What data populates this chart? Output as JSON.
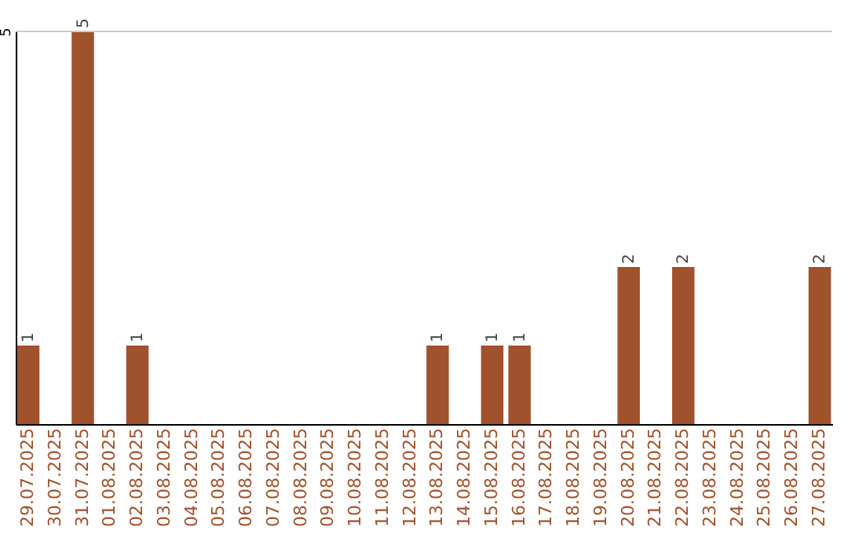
{
  "chart_data": {
    "type": "bar",
    "categories": [
      "29.07.2025",
      "30.07.2025",
      "31.07.2025",
      "01.08.2025",
      "02.08.2025",
      "03.08.2025",
      "04.08.2025",
      "05.08.2025",
      "06.08.2025",
      "07.08.2025",
      "08.08.2025",
      "09.08.2025",
      "10.08.2025",
      "11.08.2025",
      "12.08.2025",
      "13.08.2025",
      "14.08.2025",
      "15.08.2025",
      "16.08.2025",
      "17.08.2025",
      "18.08.2025",
      "19.08.2025",
      "20.08.2025",
      "21.08.2025",
      "22.08.2025",
      "23.08.2025",
      "24.08.2025",
      "25.08.2025",
      "26.08.2025",
      "27.08.2025"
    ],
    "values": [
      1,
      0,
      5,
      0,
      1,
      0,
      0,
      0,
      0,
      0,
      0,
      0,
      0,
      0,
      0,
      1,
      0,
      1,
      1,
      0,
      0,
      0,
      2,
      0,
      2,
      0,
      0,
      0,
      0,
      2
    ],
    "value_labels": [
      "1",
      null,
      "5",
      null,
      "1",
      null,
      null,
      null,
      null,
      null,
      null,
      null,
      null,
      null,
      null,
      "1",
      null,
      "1",
      "1",
      null,
      null,
      null,
      "2",
      null,
      "2",
      null,
      null,
      null,
      null,
      "2"
    ],
    "color": "#a0522d",
    "ylim": [
      0,
      5
    ],
    "yticks": [
      5
    ],
    "ref_lines": [
      {
        "axis": "y",
        "value": 5,
        "color": "#cccccc"
      }
    ]
  }
}
